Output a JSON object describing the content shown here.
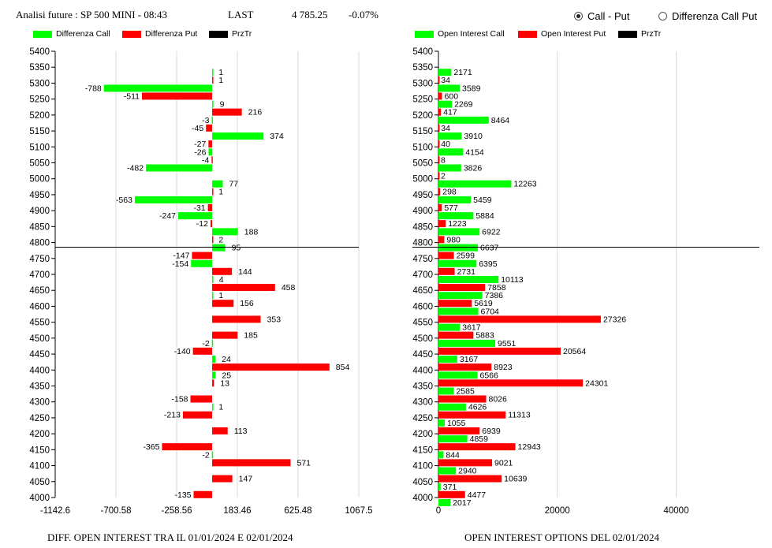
{
  "header": {
    "title": "Analisi future : SP 500 MINI - 08:43",
    "last_label": "LAST",
    "last_value": "4 785.25",
    "change": "-0.07%"
  },
  "options": [
    {
      "label": "Call - Put",
      "selected": true
    },
    {
      "label": "Differenza Call Put",
      "selected": false
    }
  ],
  "colors": {
    "call": "#00ff00",
    "put": "#ff0000",
    "price": "#000000"
  },
  "chart_data": [
    {
      "type": "bar",
      "orientation": "horizontal",
      "caption": "DIFF. OPEN INTEREST TRA IL 01/01/2024 E 02/01/2024",
      "legend": [
        "Differenza Call",
        "Differenza Put",
        "PrzTr"
      ],
      "xlim": [
        -1142.6,
        1067.5
      ],
      "xticks": [
        "-1142.6",
        "-700.58",
        "-258.56",
        "183.46",
        "625.48",
        "1067.5"
      ],
      "categories": [
        5400,
        5350,
        5300,
        5250,
        5200,
        5150,
        5100,
        5050,
        5000,
        4950,
        4900,
        4850,
        4800,
        4750,
        4700,
        4650,
        4600,
        4550,
        4500,
        4450,
        4400,
        4350,
        4300,
        4250,
        4200,
        4150,
        4100,
        4050,
        4000
      ],
      "series": [
        {
          "name": "Differenza Call",
          "values": [
            null,
            1,
            -788,
            9,
            -3,
            374,
            -26,
            -482,
            77,
            -563,
            -247,
            188,
            95,
            -154,
            4,
            1,
            null,
            null,
            -2,
            24,
            25,
            null,
            1,
            null,
            null,
            -2,
            null,
            null,
            null
          ]
        },
        {
          "name": "Differenza Put",
          "values": [
            null,
            1,
            -511,
            216,
            -45,
            -27,
            -4,
            null,
            1,
            -31,
            -12,
            2,
            -147,
            144,
            458,
            156,
            353,
            185,
            -140,
            854,
            13,
            -158,
            -213,
            113,
            -365,
            571,
            147,
            -135,
            null
          ]
        }
      ],
      "price_level": 4785.25
    },
    {
      "type": "bar",
      "orientation": "horizontal",
      "caption": "OPEN INTEREST OPTIONS DEL 02/01/2024",
      "legend": [
        "Open Interest Call",
        "Open Interest Put",
        "PrzTr"
      ],
      "xlim": [
        0,
        54000
      ],
      "xticks": [
        "0",
        "20000",
        "40000"
      ],
      "categories": [
        5400,
        5350,
        5300,
        5250,
        5200,
        5150,
        5100,
        5050,
        5000,
        4950,
        4900,
        4850,
        4800,
        4750,
        4700,
        4650,
        4600,
        4550,
        4500,
        4450,
        4400,
        4350,
        4300,
        4250,
        4200,
        4150,
        4100,
        4050,
        4000
      ],
      "series": [
        {
          "name": "Open Interest Call",
          "values": [
            null,
            2171,
            3589,
            2269,
            8464,
            3910,
            4154,
            3826,
            12263,
            5459,
            5884,
            6922,
            6637,
            6395,
            10113,
            7386,
            6704,
            3617,
            9551,
            3167,
            6566,
            2585,
            4626,
            1055,
            4859,
            844,
            2940,
            371,
            2017
          ]
        },
        {
          "name": "Open Interest Put",
          "values": [
            null,
            34,
            600,
            417,
            34,
            40,
            8,
            2,
            298,
            577,
            1223,
            980,
            2599,
            2731,
            7858,
            5619,
            27326,
            5883,
            20564,
            8923,
            24301,
            8026,
            11313,
            6939,
            12943,
            9021,
            10639,
            4477,
            null
          ]
        }
      ],
      "price_level": 4785.25
    }
  ]
}
